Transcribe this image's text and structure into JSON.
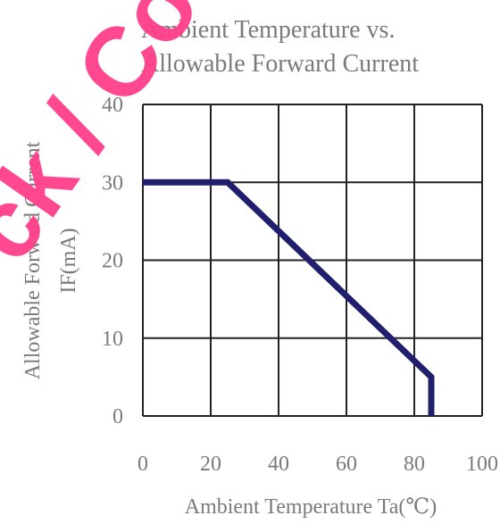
{
  "chart_data": {
    "type": "line",
    "title": "Ambient Temperature vs.",
    "subtitle": "Allowable Forward Current",
    "xlabel": "Ambient Temperature Ta(℃)",
    "ylabel": "Allowable Forward Current",
    "ylabel_unit": "IF(mA)",
    "xlim": [
      0,
      100
    ],
    "ylim": [
      0,
      40
    ],
    "x_ticks": [
      "0",
      "20",
      "40",
      "60",
      "80",
      "100"
    ],
    "y_ticks": [
      "0",
      "10",
      "20",
      "30",
      "40"
    ],
    "grid": true,
    "series": [
      {
        "color": "#1f1f6e",
        "points": [
          [
            0,
            30
          ],
          [
            25,
            30
          ],
          [
            85,
            5
          ],
          [
            85,
            0
          ]
        ]
      }
    ]
  },
  "watermark": {
    "text": "ck / Co",
    "color": "#ff3f8a"
  }
}
